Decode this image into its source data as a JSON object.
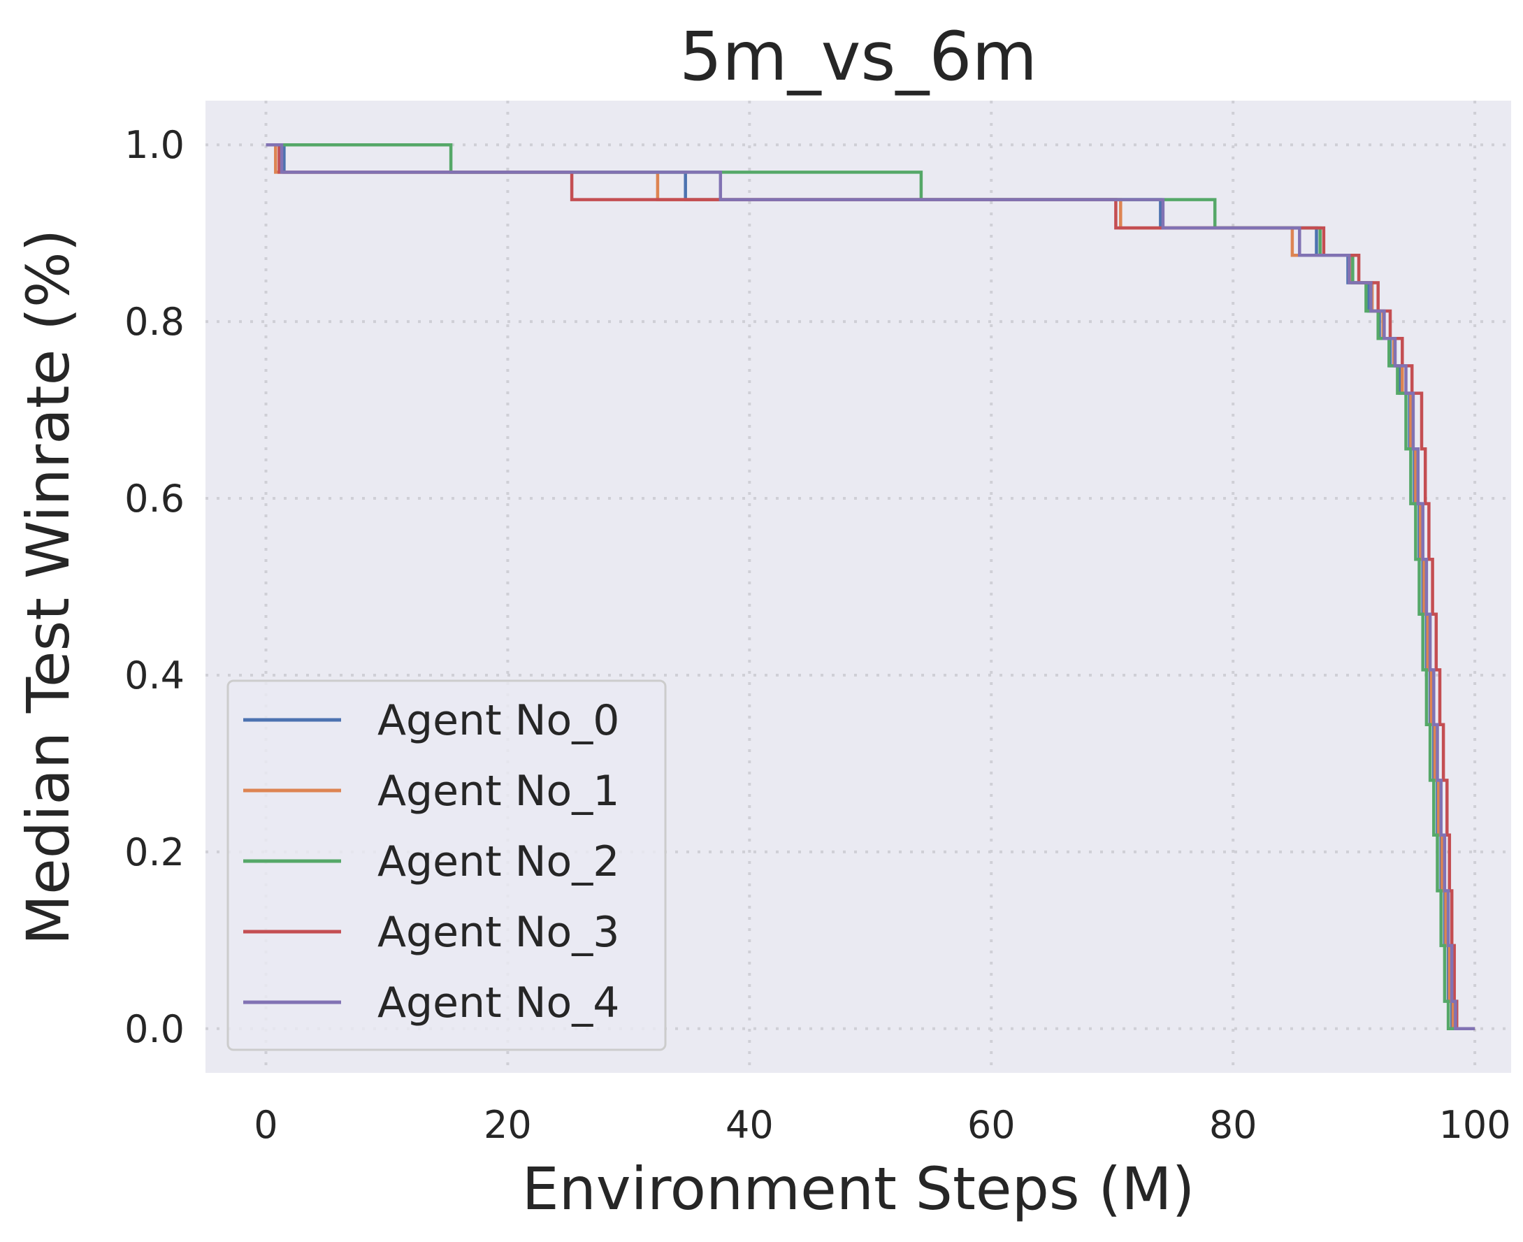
{
  "chart_data": {
    "type": "line",
    "title": "5m_vs_6m",
    "xlabel": "Environment Steps (M)",
    "ylabel": "Median Test Winrate (%)",
    "xlim": [
      -5,
      103
    ],
    "ylim": [
      -0.05,
      1.05
    ],
    "xticks": [
      0,
      20,
      40,
      60,
      80,
      100
    ],
    "yticks": [
      0.0,
      0.2,
      0.4,
      0.6,
      0.8,
      1.0
    ],
    "xtick_labels": [
      "0",
      "20",
      "40",
      "60",
      "80",
      "100"
    ],
    "ytick_labels": [
      "0.0",
      "0.2",
      "0.4",
      "0.6",
      "0.8",
      "1.0"
    ],
    "grid": true,
    "legend_position": "lower-left",
    "step": true,
    "series": [
      {
        "name": "Agent No_0",
        "color": "#4c72b0",
        "x": [
          0,
          1.5,
          34.7,
          74.0,
          86.9,
          89.5,
          91.2,
          92.1,
          93.0,
          93.8,
          94.6,
          95.0,
          95.4,
          95.7,
          96.0,
          96.3,
          96.6,
          96.9,
          97.2,
          97.5,
          97.8,
          98.1,
          100
        ],
        "y": [
          1.0,
          0.969,
          0.938,
          0.906,
          0.875,
          0.844,
          0.812,
          0.781,
          0.75,
          0.719,
          0.656,
          0.594,
          0.531,
          0.469,
          0.406,
          0.344,
          0.281,
          0.219,
          0.156,
          0.094,
          0.031,
          0.0,
          0.0
        ]
      },
      {
        "name": "Agent No_1",
        "color": "#dd8452",
        "x": [
          0,
          0.8,
          32.4,
          70.7,
          84.9,
          89.8,
          91.5,
          92.4,
          93.3,
          94.0,
          94.7,
          95.1,
          95.5,
          95.8,
          96.1,
          96.4,
          96.7,
          97.0,
          97.3,
          97.6,
          97.9,
          98.2,
          100
        ],
        "y": [
          1.0,
          0.969,
          0.938,
          0.906,
          0.875,
          0.844,
          0.812,
          0.781,
          0.75,
          0.719,
          0.656,
          0.594,
          0.531,
          0.469,
          0.406,
          0.344,
          0.281,
          0.219,
          0.156,
          0.094,
          0.031,
          0.0,
          0.0
        ]
      },
      {
        "name": "Agent No_2",
        "color": "#55a868",
        "x": [
          0,
          15.3,
          54.2,
          78.5,
          87.2,
          89.9,
          91.0,
          92.0,
          92.9,
          93.6,
          94.3,
          94.7,
          95.1,
          95.4,
          95.7,
          96.0,
          96.3,
          96.6,
          96.9,
          97.2,
          97.5,
          97.8,
          100
        ],
        "y": [
          1.0,
          0.969,
          0.938,
          0.906,
          0.875,
          0.844,
          0.812,
          0.781,
          0.75,
          0.719,
          0.656,
          0.594,
          0.531,
          0.469,
          0.406,
          0.344,
          0.281,
          0.219,
          0.156,
          0.094,
          0.031,
          0.0,
          0.0
        ]
      },
      {
        "name": "Agent No_3",
        "color": "#c44e52",
        "x": [
          0,
          1.1,
          25.3,
          70.3,
          87.5,
          90.4,
          92.0,
          93.0,
          94.0,
          94.8,
          95.6,
          95.9,
          96.2,
          96.5,
          96.8,
          97.1,
          97.4,
          97.7,
          97.9,
          98.1,
          98.3,
          98.5,
          100
        ],
        "y": [
          1.0,
          0.969,
          0.938,
          0.906,
          0.875,
          0.844,
          0.812,
          0.781,
          0.75,
          0.719,
          0.656,
          0.594,
          0.531,
          0.469,
          0.406,
          0.344,
          0.281,
          0.219,
          0.156,
          0.094,
          0.031,
          0.0,
          0.0
        ]
      },
      {
        "name": "Agent No_4",
        "color": "#8172b3",
        "x": [
          0,
          1.3,
          37.6,
          74.2,
          85.5,
          89.6,
          91.4,
          92.5,
          93.4,
          94.3,
          94.9,
          95.3,
          95.7,
          96.0,
          96.3,
          96.6,
          96.9,
          97.2,
          97.5,
          97.8,
          98.1,
          98.4,
          100
        ],
        "y": [
          1.0,
          0.969,
          0.938,
          0.906,
          0.875,
          0.844,
          0.812,
          0.781,
          0.75,
          0.719,
          0.656,
          0.594,
          0.531,
          0.469,
          0.406,
          0.344,
          0.281,
          0.219,
          0.156,
          0.094,
          0.031,
          0.0,
          0.0
        ]
      }
    ]
  }
}
